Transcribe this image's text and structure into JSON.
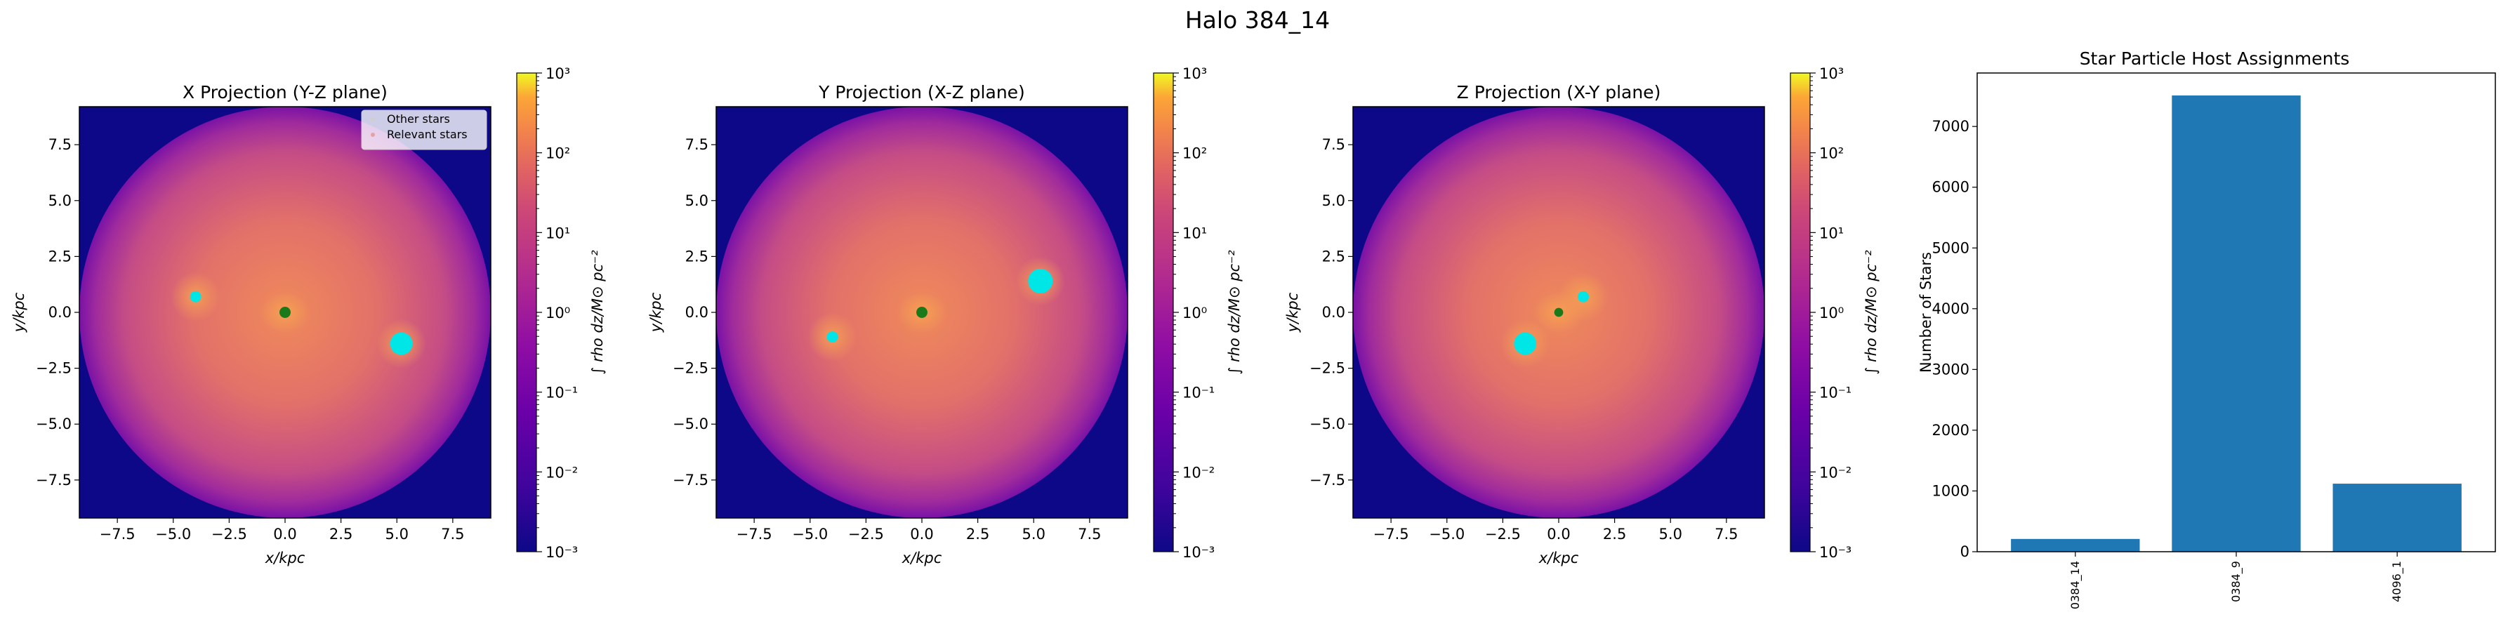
{
  "figure": {
    "suptitle": "Halo 384_14"
  },
  "chart_data": [
    {
      "type": "heatmap",
      "title": "X Projection (Y-Z plane)",
      "xlabel": "x/kpc",
      "ylabel": "y/kpc",
      "xlim": [
        -9.2,
        9.2
      ],
      "ylim": [
        -9.2,
        9.2
      ],
      "xticks": [
        -7.5,
        -5.0,
        -2.5,
        0.0,
        2.5,
        5.0,
        7.5
      ],
      "yticks": [
        -7.5,
        -5.0,
        -2.5,
        0.0,
        2.5,
        5.0,
        7.5
      ],
      "xtick_labels": [
        "−7.5",
        "−5.0",
        "−2.5",
        "0.0",
        "2.5",
        "5.0",
        "7.5"
      ],
      "ytick_labels": [
        "−7.5",
        "−5.0",
        "−2.5",
        "0.0",
        "2.5",
        "5.0",
        "7.5"
      ],
      "colormap": "plasma",
      "colorbar": {
        "label": "∫ rho dz/M⊙ pc⁻²",
        "scale": "log",
        "range": [
          0.001,
          1000
        ],
        "tick_labels": [
          "10⁻³",
          "10⁻²",
          "10⁻¹",
          "10⁰",
          "10¹",
          "10²",
          "10³"
        ]
      },
      "disk_radius": 9.2,
      "background_color": "#0d0887",
      "legend": {
        "position": "top-right",
        "entries": [
          "Other stars",
          "Relevant stars"
        ]
      },
      "star_groups": [
        {
          "kind": "other",
          "color": "#00e5e5",
          "x": 5.2,
          "y": -1.4,
          "size": 0.5
        },
        {
          "kind": "other",
          "color": "#00e5e5",
          "x": -4.0,
          "y": 0.7,
          "size": 0.25
        },
        {
          "kind": "relevant",
          "color": "#1a7a1a",
          "x": 0.0,
          "y": 0.0,
          "size": 0.25
        }
      ]
    },
    {
      "type": "heatmap",
      "title": "Y Projection (X-Z plane)",
      "xlabel": "x/kpc",
      "ylabel": "y/kpc",
      "xlim": [
        -9.2,
        9.2
      ],
      "ylim": [
        -9.2,
        9.2
      ],
      "xticks": [
        -7.5,
        -5.0,
        -2.5,
        0.0,
        2.5,
        5.0,
        7.5
      ],
      "yticks": [
        -7.5,
        -5.0,
        -2.5,
        0.0,
        2.5,
        5.0,
        7.5
      ],
      "xtick_labels": [
        "−7.5",
        "−5.0",
        "−2.5",
        "0.0",
        "2.5",
        "5.0",
        "7.5"
      ],
      "ytick_labels": [
        "−7.5",
        "−5.0",
        "−2.5",
        "0.0",
        "2.5",
        "5.0",
        "7.5"
      ],
      "colormap": "plasma",
      "colorbar": {
        "label": "∫ rho dz/M⊙ pc⁻²",
        "scale": "log",
        "range": [
          0.001,
          1000
        ],
        "tick_labels": [
          "10⁻³",
          "10⁻²",
          "10⁻¹",
          "10⁰",
          "10¹",
          "10²",
          "10³"
        ]
      },
      "disk_radius": 9.2,
      "background_color": "#0d0887",
      "star_groups": [
        {
          "kind": "other",
          "color": "#00e5e5",
          "x": 5.3,
          "y": 1.4,
          "size": 0.55
        },
        {
          "kind": "other",
          "color": "#00e5e5",
          "x": -4.0,
          "y": -1.1,
          "size": 0.25
        },
        {
          "kind": "relevant",
          "color": "#1a7a1a",
          "x": 0.0,
          "y": 0.0,
          "size": 0.25
        }
      ]
    },
    {
      "type": "heatmap",
      "title": "Z Projection (X-Y plane)",
      "xlabel": "x/kpc",
      "ylabel": "y/kpc",
      "xlim": [
        -9.2,
        9.2
      ],
      "ylim": [
        -9.2,
        9.2
      ],
      "xticks": [
        -7.5,
        -5.0,
        -2.5,
        0.0,
        2.5,
        5.0,
        7.5
      ],
      "yticks": [
        -7.5,
        -5.0,
        -2.5,
        0.0,
        2.5,
        5.0,
        7.5
      ],
      "xtick_labels": [
        "−7.5",
        "−5.0",
        "−2.5",
        "0.0",
        "2.5",
        "5.0",
        "7.5"
      ],
      "ytick_labels": [
        "−7.5",
        "−5.0",
        "−2.5",
        "0.0",
        "2.5",
        "5.0",
        "7.5"
      ],
      "colormap": "plasma",
      "colorbar": {
        "label": "∫ rho dz/M⊙ pc⁻²",
        "scale": "log",
        "range": [
          0.001,
          1000
        ],
        "tick_labels": [
          "10⁻³",
          "10⁻²",
          "10⁻¹",
          "10⁰",
          "10¹",
          "10²",
          "10³"
        ]
      },
      "disk_radius": 9.2,
      "background_color": "#0d0887",
      "star_groups": [
        {
          "kind": "other",
          "color": "#00e5e5",
          "x": -1.5,
          "y": -1.4,
          "size": 0.5
        },
        {
          "kind": "other",
          "color": "#00e5e5",
          "x": 1.1,
          "y": 0.7,
          "size": 0.25
        },
        {
          "kind": "relevant",
          "color": "#1a7a1a",
          "x": 0.0,
          "y": 0.0,
          "size": 0.2
        }
      ]
    },
    {
      "type": "bar",
      "title": "Star Particle Host Assignments",
      "xlabel": "",
      "ylabel": "Number of Stars",
      "categories": [
        "0384_14",
        "0384_9",
        "4096_1"
      ],
      "values": [
        210,
        7510,
        1120
      ],
      "ylim": [
        0,
        7880
      ],
      "yticks": [
        0,
        1000,
        2000,
        3000,
        4000,
        5000,
        6000,
        7000
      ],
      "ytick_labels": [
        "0",
        "1000",
        "2000",
        "3000",
        "4000",
        "5000",
        "6000",
        "7000"
      ],
      "bar_color": "#1f77b4"
    }
  ]
}
